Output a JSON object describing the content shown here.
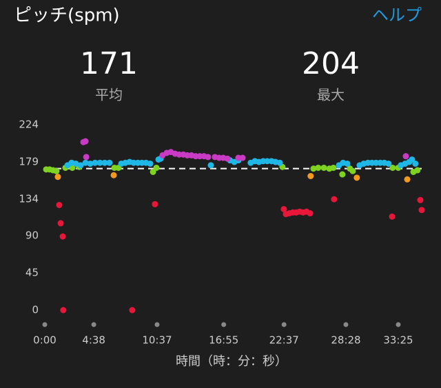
{
  "header": {
    "title": "ピッチ(spm)",
    "help": "ヘルプ"
  },
  "stats": [
    {
      "value": 171,
      "label": "平均"
    },
    {
      "value": 204,
      "label": "最大"
    }
  ],
  "chart_data": {
    "type": "scatter",
    "x_label": "時間（時：分：秒）",
    "xlim": [
      0,
      2138
    ],
    "ylim": [
      0,
      224
    ],
    "xticks": [
      {
        "value": 0,
        "label": "0:00"
      },
      {
        "value": 278,
        "label": "4:38"
      },
      {
        "value": 637,
        "label": "10:37"
      },
      {
        "value": 1015,
        "label": "16:55"
      },
      {
        "value": 1357,
        "label": "22:37"
      },
      {
        "value": 1708,
        "label": "28:28"
      },
      {
        "value": 2005,
        "label": "33:25"
      }
    ],
    "yticks": [
      0,
      45,
      90,
      134,
      179,
      224
    ],
    "series": [
      {
        "color": "#e8173a",
        "x": [
          82,
          90,
          102,
          105,
          496,
          625,
          1356,
          1368,
          1387,
          1407,
          1426,
          1446,
          1465,
          1485,
          1505,
          1641,
          1970,
          2130,
          2138
        ],
        "values": [
          127,
          105,
          89,
          0,
          0,
          128,
          122,
          116,
          117,
          118,
          118,
          119,
          118,
          119,
          117,
          134,
          113,
          133,
          121
        ]
      },
      {
        "color": "#f39a1e",
        "x": [
          74,
          391,
          1508,
          1770,
          2056
        ],
        "values": [
          161,
          163,
          162,
          160,
          158
        ]
      },
      {
        "color": "#7ed321",
        "x": [
          8,
          27,
          47,
          66,
          117,
          156,
          195,
          395,
          418,
          614,
          633,
          1348,
          1524,
          1551,
          1583,
          1614,
          1637,
          1688,
          1731,
          1747,
          1973,
          2005,
          2091,
          2114
        ],
        "values": [
          170,
          170,
          169,
          168,
          172,
          172,
          173,
          172,
          172,
          167,
          172,
          173,
          171,
          172,
          172,
          171,
          172,
          164,
          171,
          168,
          172,
          172,
          167,
          169
        ]
      },
      {
        "color": "#1fb8e6",
        "x": [
          129,
          152,
          176,
          203,
          231,
          258,
          285,
          313,
          340,
          367,
          434,
          457,
          481,
          504,
          528,
          551,
          574,
          598,
          645,
          657,
          942,
          1051,
          1075,
          1098,
          1168,
          1192,
          1215,
          1239,
          1262,
          1286,
          1309,
          1333,
          1669,
          1692,
          1716,
          1786,
          1809,
          1833,
          1856,
          1879,
          1903,
          1926,
          1950,
          2020,
          2044,
          2067,
          2083,
          2102
        ],
        "values": [
          175,
          178,
          177,
          175,
          178,
          177,
          178,
          178,
          178,
          178,
          177,
          178,
          179,
          178,
          178,
          178,
          178,
          177,
          182,
          183,
          175,
          181,
          179,
          181,
          178,
          180,
          179,
          180,
          180,
          180,
          179,
          178,
          175,
          178,
          177,
          175,
          177,
          178,
          178,
          178,
          178,
          178,
          177,
          175,
          177,
          179,
          182,
          177
        ]
      },
      {
        "color": "#c93bc4",
        "x": [
          219,
          231,
          235,
          668,
          692,
          715,
          739,
          762,
          786,
          809,
          832,
          856,
          879,
          903,
          926,
          965,
          989,
          1012,
          1036,
          1098,
          1122,
          2048
        ],
        "values": [
          203,
          204,
          185,
          187,
          190,
          191,
          189,
          188,
          188,
          187,
          187,
          186,
          186,
          186,
          185,
          185,
          184,
          184,
          183,
          184,
          184,
          186
        ]
      }
    ]
  }
}
